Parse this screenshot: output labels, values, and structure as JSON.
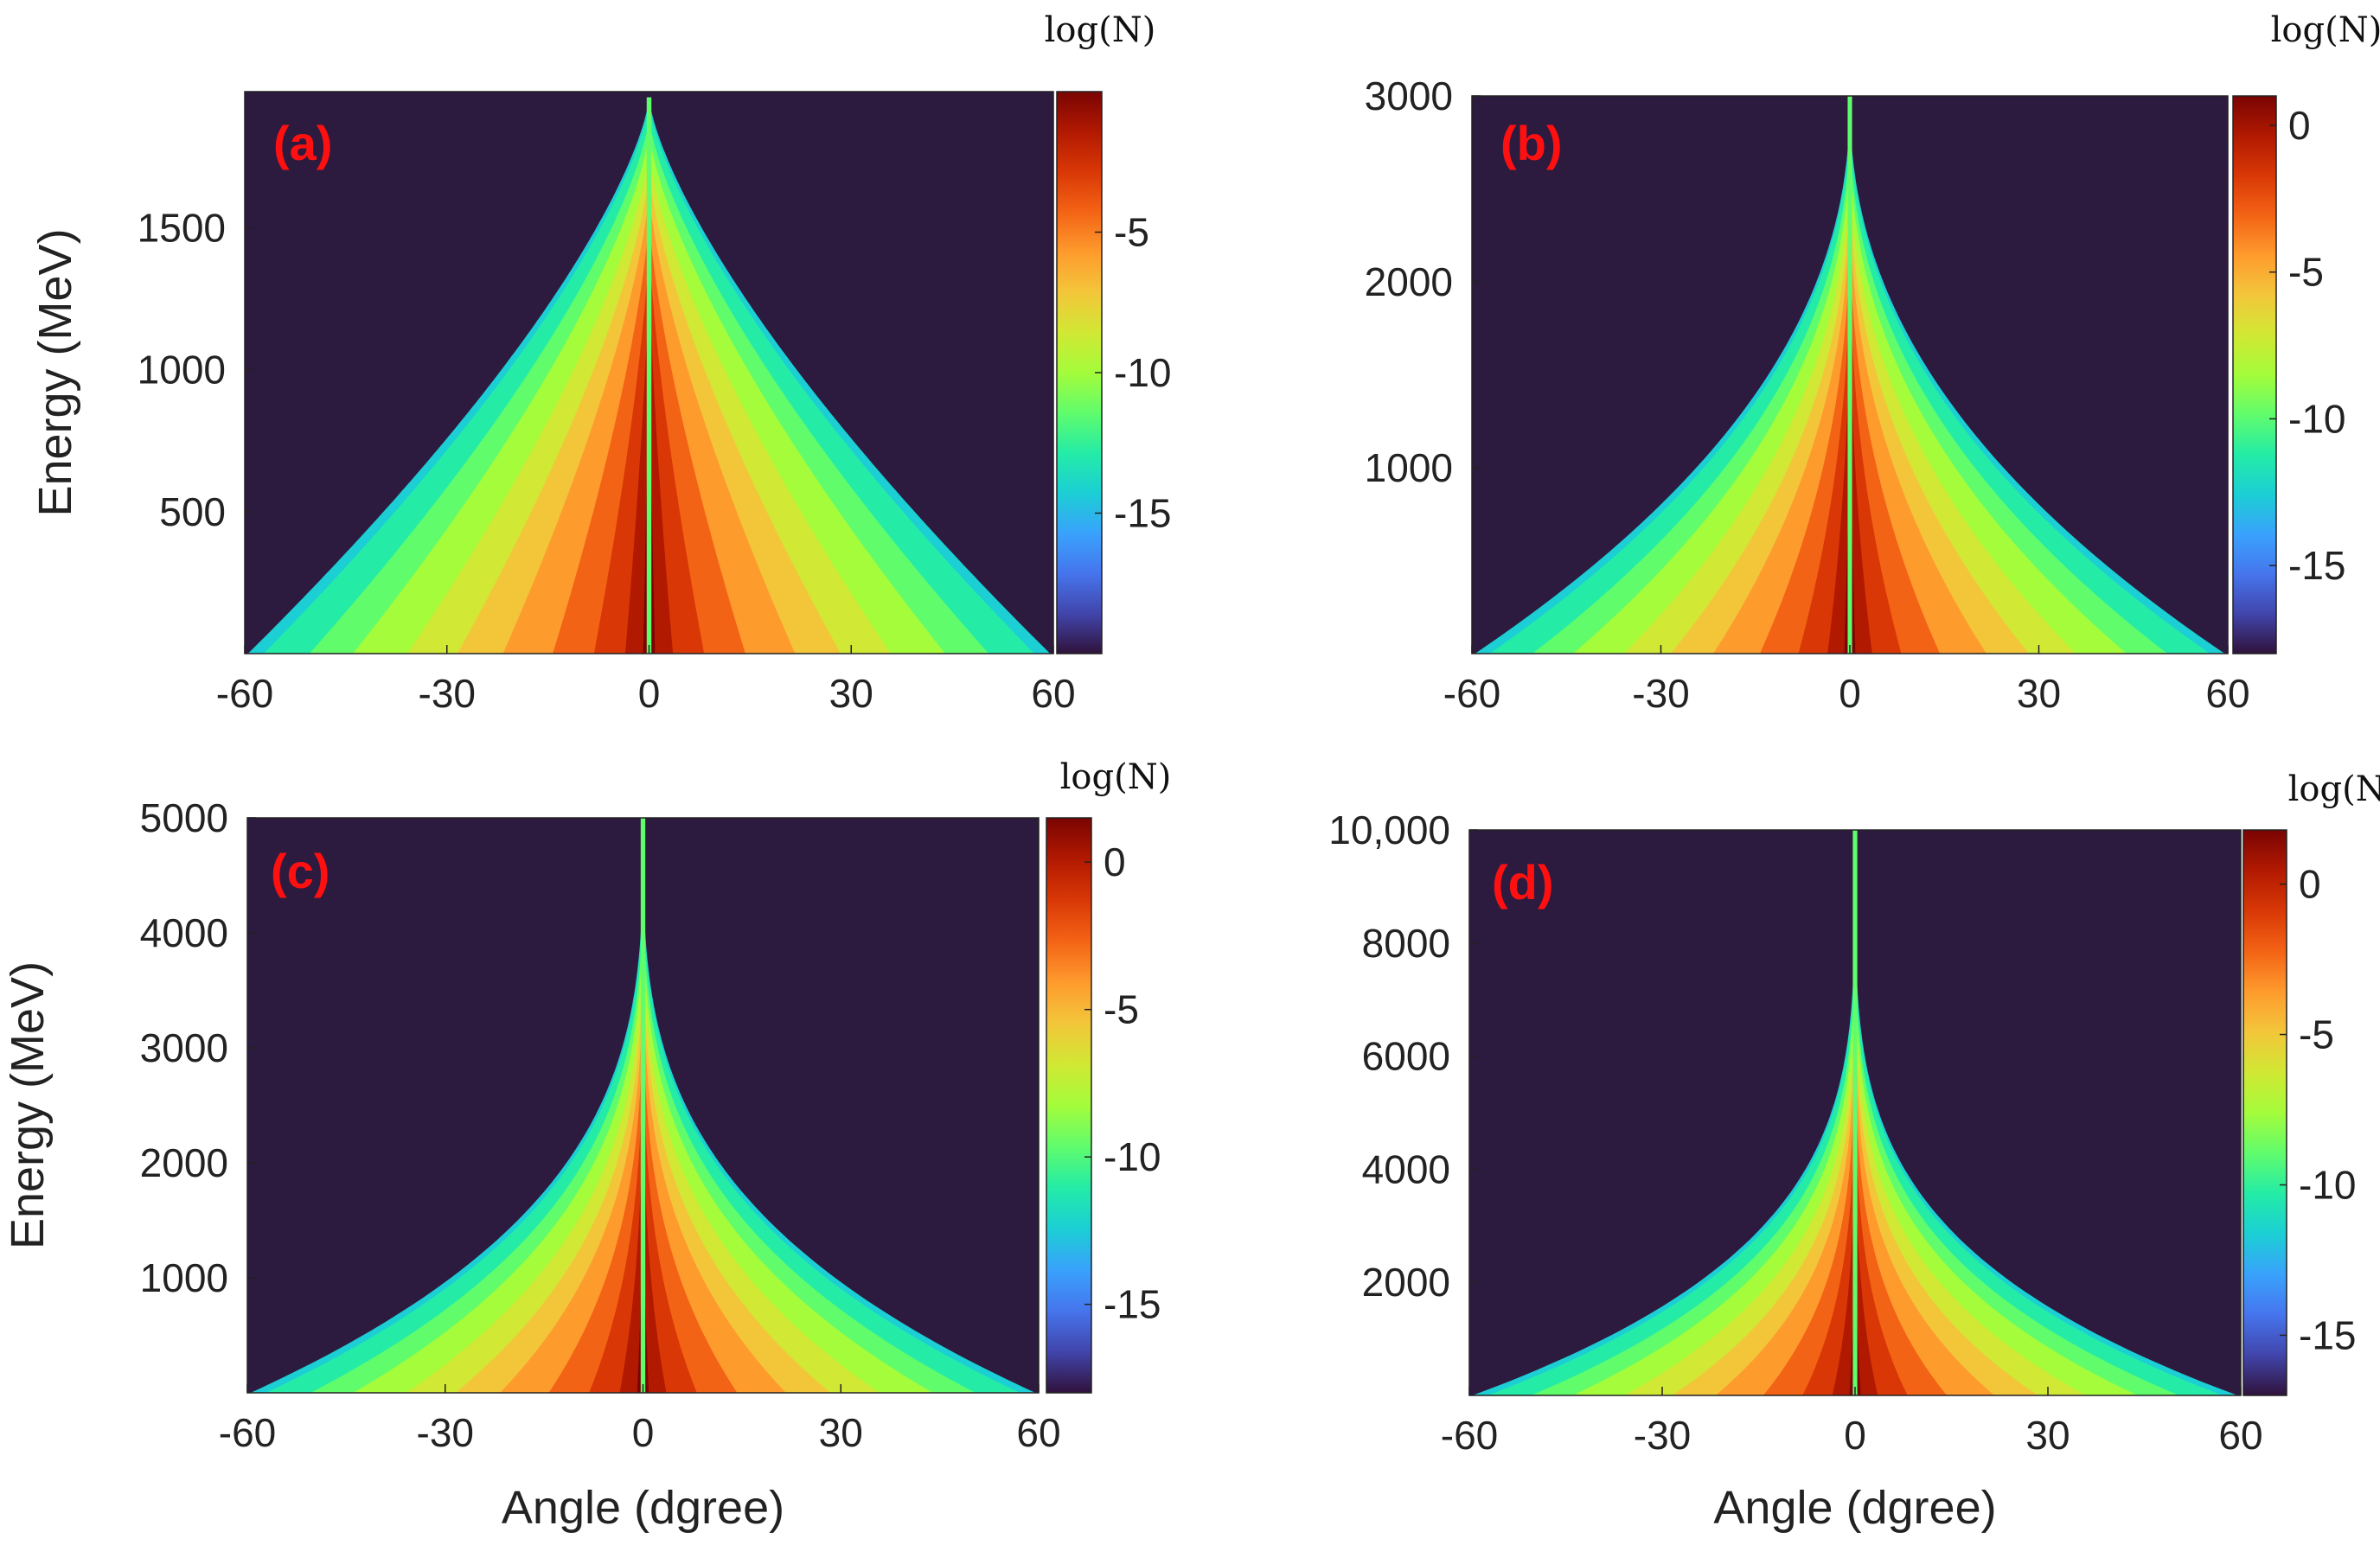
{
  "colors": {
    "background": "#2d1a3f",
    "panel_label": "#ff1010",
    "axis": "#222222",
    "colormap": [
      "#30123b",
      "#4145ab",
      "#4675ed",
      "#39a2fc",
      "#1bcfd4",
      "#24eca6",
      "#61fc6c",
      "#a4fc3b",
      "#d1e834",
      "#f3c63a",
      "#fe9b2d",
      "#f36315",
      "#d93806",
      "#b11901",
      "#7a0402"
    ]
  },
  "chart_data": [
    {
      "type": "heatmap",
      "panel_label": "(a)",
      "xlabel": "",
      "ylabel": "Energy (MeV)",
      "xlim": [
        -60,
        60
      ],
      "ylim": [
        0,
        1980
      ],
      "xticks": [
        -60,
        -30,
        0,
        30,
        60
      ],
      "xtick_labels": [
        "-60",
        "-30",
        "0",
        "30",
        "60"
      ],
      "yticks": [
        500,
        1000,
        1500
      ],
      "ytick_labels": [
        "500",
        "1000",
        "1500"
      ],
      "colorbar": {
        "title": "log(N)",
        "range": [
          -20,
          0
        ],
        "ticks": [
          -5,
          -10,
          -15
        ],
        "tick_labels": [
          "-5",
          "-10",
          "-15"
        ]
      },
      "distribution": {
        "max_energy": 1960,
        "width_at_zero_energy_deg": 60,
        "shape_exponent": 1.4
      }
    },
    {
      "type": "heatmap",
      "panel_label": "(b)",
      "xlabel": "",
      "ylabel": "",
      "xlim": [
        -60,
        60
      ],
      "ylim": [
        0,
        3000
      ],
      "xticks": [
        -60,
        -30,
        0,
        30,
        60
      ],
      "xtick_labels": [
        "-60",
        "-30",
        "0",
        "30",
        "60"
      ],
      "yticks": [
        1000,
        2000,
        3000
      ],
      "ytick_labels": [
        "1000",
        "2000",
        "3000"
      ],
      "colorbar": {
        "title": "log(N)",
        "range": [
          -18,
          1
        ],
        "ticks": [
          0,
          -5,
          -10,
          -15
        ],
        "tick_labels": [
          "0",
          "-5",
          "-10",
          "-15"
        ]
      },
      "distribution": {
        "max_energy": 3000,
        "width_at_zero_energy_deg": 60,
        "shape_exponent": 2.2
      }
    },
    {
      "type": "heatmap",
      "panel_label": "(c)",
      "xlabel": "Angle (dgree)",
      "ylabel": "Energy (MeV)",
      "xlim": [
        -60,
        60
      ],
      "ylim": [
        0,
        5000
      ],
      "xticks": [
        -60,
        -30,
        0,
        30,
        60
      ],
      "xtick_labels": [
        "-60",
        "-30",
        "0",
        "30",
        "60"
      ],
      "yticks": [
        1000,
        2000,
        3000,
        4000,
        5000
      ],
      "ytick_labels": [
        "1000",
        "2000",
        "3000",
        "4000",
        "5000"
      ],
      "colorbar": {
        "title": "log(N)",
        "range": [
          -18,
          1.5
        ],
        "ticks": [
          0,
          -5,
          -10,
          -15
        ],
        "tick_labels": [
          "0",
          "-5",
          "-10",
          "-15"
        ]
      },
      "distribution": {
        "max_energy": 5000,
        "width_at_zero_energy_deg": 60,
        "shape_exponent": 3.2
      }
    },
    {
      "type": "heatmap",
      "panel_label": "(d)",
      "xlabel": "Angle (dgree)",
      "ylabel": "",
      "xlim": [
        -60,
        60
      ],
      "ylim": [
        0,
        10000
      ],
      "xticks": [
        -60,
        -30,
        0,
        30,
        60
      ],
      "xtick_labels": [
        "-60",
        "-30",
        "0",
        "30",
        "60"
      ],
      "yticks": [
        2000,
        4000,
        6000,
        8000,
        10000
      ],
      "ytick_labels": [
        "2000",
        "4000",
        "6000",
        "8000",
        "10,000"
      ],
      "colorbar": {
        "title": "log(N)",
        "range": [
          -17,
          1.8
        ],
        "ticks": [
          0,
          -5,
          -10,
          -15
        ],
        "tick_labels": [
          "0",
          "-5",
          "-10",
          "-15"
        ]
      },
      "distribution": {
        "max_energy": 10000,
        "width_at_zero_energy_deg": 60,
        "shape_exponent": 4.0
      }
    }
  ]
}
